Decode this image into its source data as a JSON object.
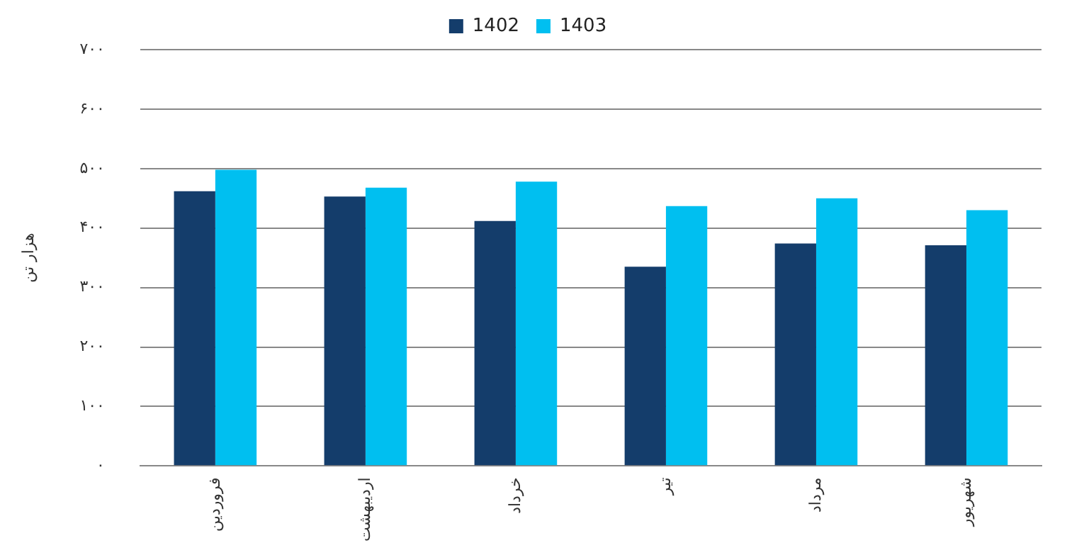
{
  "chart_data": {
    "type": "bar",
    "ylabel": "هزار تن",
    "categories": [
      "فروردین",
      "اردیبهشت",
      "خرداد",
      "تیر",
      "مرداد",
      "شهریور"
    ],
    "series": [
      {
        "name": "1402",
        "color": "#143d6b",
        "values": [
          462,
          453,
          412,
          335,
          374,
          371
        ]
      },
      {
        "name": "1403",
        "color": "#00bff0",
        "values": [
          498,
          468,
          478,
          437,
          450,
          430
        ]
      }
    ],
    "ylim": [
      0,
      700
    ],
    "yticks": [
      {
        "value": 0,
        "label": "۰"
      },
      {
        "value": 100,
        "label": "۱۰۰"
      },
      {
        "value": 200,
        "label": "۲۰۰"
      },
      {
        "value": 300,
        "label": "۳۰۰"
      },
      {
        "value": 400,
        "label": "۴۰۰"
      },
      {
        "value": 500,
        "label": "۵۰۰"
      },
      {
        "value": 600,
        "label": "۶۰۰"
      },
      {
        "value": 700,
        "label": "۷۰۰"
      }
    ],
    "grid": "y",
    "legend": "top"
  }
}
